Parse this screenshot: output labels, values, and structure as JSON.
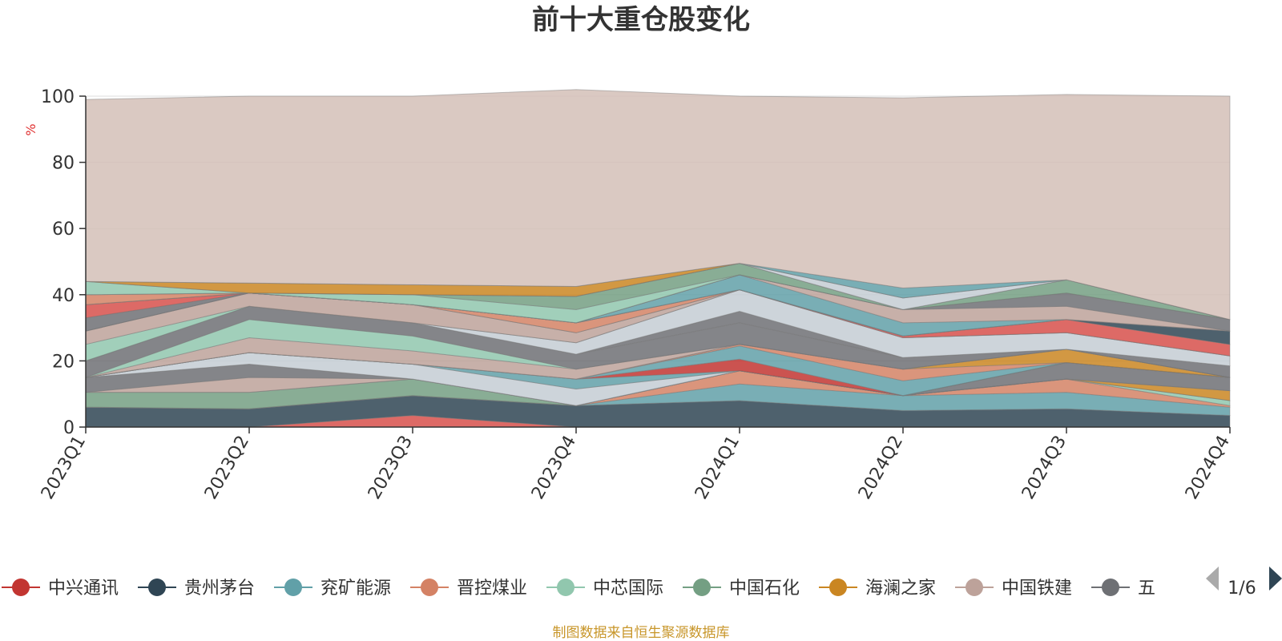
{
  "chart_data": {
    "type": "area",
    "stacked": true,
    "title": "前十大重仓股变化",
    "ylabel": "%",
    "ylim": [
      0,
      100
    ],
    "yticks": [
      0,
      20,
      40,
      60,
      80,
      100
    ],
    "grid": true,
    "categories": [
      "2023Q1",
      "2023Q2",
      "2023Q3",
      "2023Q4",
      "2024Q1",
      "2024Q2",
      "2024Q3",
      "2024Q4"
    ],
    "series": [
      {
        "name": "中兴通讯",
        "color": "#d7504b",
        "values": [
          0.0,
          0.0,
          3.5,
          0.0,
          0.0,
          0.0,
          0.0,
          0.0
        ]
      },
      {
        "name": "贵州茅台",
        "color": "#2f4554",
        "values": [
          6.0,
          5.5,
          6.0,
          6.5,
          8.0,
          5.0,
          5.5,
          3.5
        ]
      },
      {
        "name": "兖矿能源",
        "color": "#61a0a8",
        "values": [
          0.0,
          0.0,
          0.0,
          0.0,
          5.0,
          4.5,
          5.0,
          2.5
        ]
      },
      {
        "name": "晋控煤业",
        "color": "#d48265",
        "values": [
          0.0,
          0.0,
          0.0,
          0.0,
          4.0,
          0.0,
          4.0,
          0.5
        ]
      },
      {
        "name": "中芯国际",
        "color": "#91c7ae",
        "values": [
          0.0,
          0.0,
          0.0,
          0.0,
          0.0,
          0.0,
          0.0,
          1.5
        ]
      },
      {
        "name": "中国石化",
        "color": "#749f83",
        "values": [
          4.5,
          5.0,
          5.0,
          0.0,
          0.0,
          0.0,
          0.0,
          0.0
        ]
      },
      {
        "name": "海澜之家",
        "color": "#ca8622",
        "values": [
          0.0,
          0.0,
          0.0,
          0.0,
          0.0,
          0.0,
          0.0,
          3.0
        ]
      },
      {
        "name": "中国铁建",
        "color": "#bda29a",
        "values": [
          0.0,
          4.5,
          0.0,
          0.0,
          0.0,
          0.0,
          0.0,
          0.0
        ]
      },
      {
        "name": "",
        "color": "#6e7074",
        "values": [
          4.5,
          4.0,
          0.0,
          0.0,
          0.0,
          0.0,
          5.0,
          4.0
        ]
      },
      {
        "name": "",
        "color": "#546570",
        "values": [
          0.0,
          0.0,
          0.0,
          0.0,
          0.0,
          0.0,
          0.0,
          0.0
        ]
      },
      {
        "name": "",
        "color": "#c4ccd3",
        "values": [
          0.0,
          3.5,
          4.5,
          5.0,
          0.0,
          0.0,
          0.0,
          0.0
        ]
      },
      {
        "name": "",
        "color": "#61a0a8",
        "values": [
          0.0,
          0.0,
          0.0,
          3.0,
          0.0,
          0.0,
          0.0,
          0.0
        ]
      },
      {
        "name": "",
        "color": "#c23531",
        "values": [
          0.0,
          0.0,
          0.0,
          0.0,
          3.5,
          0.0,
          0.0,
          0.0
        ]
      },
      {
        "name": "",
        "color": "#61a0a8",
        "values": [
          0.0,
          0.0,
          0.0,
          0.0,
          4.0,
          4.5,
          0.0,
          0.0
        ]
      },
      {
        "name": "",
        "color": "#d48265",
        "values": [
          0.0,
          0.0,
          0.0,
          0.0,
          0.5,
          3.5,
          0.0,
          0.0
        ]
      },
      {
        "name": "",
        "color": "#ca8622",
        "values": [
          0.0,
          0.0,
          0.0,
          0.0,
          0.0,
          0.0,
          4.0,
          0.0
        ]
      },
      {
        "name": "",
        "color": "#bda29a",
        "values": [
          0.0,
          4.5,
          4.0,
          3.0,
          0.0,
          0.0,
          0.0,
          0.0
        ]
      },
      {
        "name": "",
        "color": "#91c7ae",
        "values": [
          0.0,
          5.5,
          4.5,
          0.0,
          0.0,
          0.0,
          0.0,
          0.0
        ]
      },
      {
        "name": "",
        "color": "#6e7074",
        "values": [
          5.0,
          4.0,
          4.0,
          4.5,
          6.5,
          3.5,
          0.0,
          0.0
        ]
      },
      {
        "name": "",
        "color": "#6e7074",
        "values": [
          0.0,
          0.0,
          0.0,
          0.0,
          3.5,
          0.0,
          0.0,
          3.5
        ]
      },
      {
        "name": "",
        "color": "#c4ccd3",
        "values": [
          0.0,
          0.0,
          0.0,
          3.5,
          6.5,
          6.0,
          5.0,
          3.0
        ]
      },
      {
        "name": "",
        "color": "#91c7ae",
        "values": [
          5.0,
          0.0,
          0.0,
          0.0,
          0.0,
          0.0,
          0.0,
          0.0
        ]
      },
      {
        "name": "",
        "color": "#bda29a",
        "values": [
          4.0,
          4.0,
          5.5,
          3.0,
          0.0,
          0.0,
          0.0,
          0.0
        ]
      },
      {
        "name": "",
        "color": "#d7504b",
        "values": [
          0.0,
          0.0,
          0.0,
          0.0,
          0.0,
          0.5,
          4.0,
          3.5
        ]
      },
      {
        "name": "",
        "color": "#d48265",
        "values": [
          0.0,
          0.0,
          0.0,
          3.0,
          0.0,
          0.0,
          0.0,
          0.0
        ]
      },
      {
        "name": "",
        "color": "#6e7074",
        "values": [
          4.0,
          0.0,
          0.0,
          0.0,
          0.0,
          0.0,
          0.0,
          0.0
        ]
      },
      {
        "name": "",
        "color": "#2f4554",
        "values": [
          0.0,
          0.0,
          0.0,
          0.0,
          0.0,
          0.0,
          0.0,
          4.0
        ]
      },
      {
        "name": "",
        "color": "#d7504b",
        "values": [
          4.0,
          0.0,
          0.0,
          0.0,
          0.0,
          0.0,
          0.0,
          0.0
        ]
      },
      {
        "name": "",
        "color": "#61a0a8",
        "values": [
          0.0,
          0.0,
          0.0,
          0.0,
          4.5,
          4.0,
          0.0,
          0.0
        ]
      },
      {
        "name": "",
        "color": "#bda29a",
        "values": [
          0.0,
          0.0,
          0.0,
          0.0,
          0.0,
          4.0,
          4.0,
          0.0
        ]
      },
      {
        "name": "",
        "color": "#6e7074",
        "values": [
          0.0,
          0.0,
          0.0,
          0.0,
          0.0,
          0.0,
          4.0,
          3.5
        ]
      },
      {
        "name": "",
        "color": "#d48265",
        "values": [
          3.0,
          0.0,
          0.0,
          0.0,
          0.0,
          0.0,
          0.0,
          0.0
        ]
      },
      {
        "name": "",
        "color": "#91c7ae",
        "values": [
          0.0,
          0.0,
          3.0,
          4.0,
          0.0,
          0.0,
          0.0,
          0.0
        ]
      },
      {
        "name": "",
        "color": "#749f83",
        "values": [
          0.0,
          0.0,
          0.0,
          4.0,
          3.5,
          0.0,
          4.0,
          0.0
        ]
      },
      {
        "name": "",
        "color": "#91c7ae",
        "values": [
          4.0,
          0.0,
          0.0,
          0.0,
          0.0,
          0.0,
          0.0,
          0.0
        ]
      },
      {
        "name": "",
        "color": "#c4ccd3",
        "values": [
          0.0,
          0.0,
          0.0,
          0.0,
          0.0,
          3.5,
          0.0,
          0.0
        ]
      },
      {
        "name": "",
        "color": "#ca8622",
        "values": [
          0.0,
          3.0,
          3.0,
          3.0,
          0.0,
          0.0,
          0.0,
          0.0
        ]
      },
      {
        "name": "",
        "color": "#61a0a8",
        "values": [
          0.0,
          0.0,
          0.0,
          0.0,
          0.0,
          3.0,
          0.0,
          0.0
        ]
      },
      {
        "name": "",
        "color": "#d4bfb7",
        "values": [
          55.0,
          56.5,
          57.0,
          59.5,
          50.5,
          57.5,
          56.0,
          67.5
        ]
      }
    ]
  },
  "legend": {
    "items": [
      {
        "label": "中兴通讯",
        "color": "#c23531"
      },
      {
        "label": "贵州茅台",
        "color": "#2f4554"
      },
      {
        "label": "兖矿能源",
        "color": "#61a0a8"
      },
      {
        "label": "晋控煤业",
        "color": "#d48265"
      },
      {
        "label": "中芯国际",
        "color": "#91c7ae"
      },
      {
        "label": "中国石化",
        "color": "#749f83"
      },
      {
        "label": "海澜之家",
        "color": "#ca8622"
      },
      {
        "label": "中国铁建",
        "color": "#bda29a"
      },
      {
        "label": "五",
        "color": "#6e7074"
      }
    ],
    "page": "1/6"
  },
  "source_note": "制图数据来自恒生聚源数据库"
}
